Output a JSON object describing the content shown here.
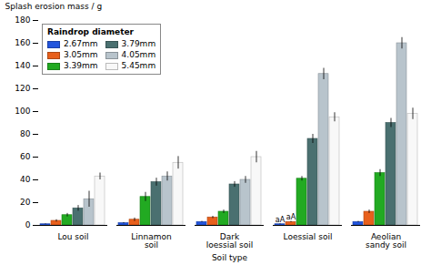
{
  "chart_data": {
    "type": "bar",
    "xlabel": "Soil type",
    "ylabel": "Splash erosion mass / g",
    "categories": [
      "Lou soil",
      "Linnamon soil",
      "Dark loessial soil",
      "Loessial soil",
      "Aeolian sandy soil"
    ],
    "series": [
      {
        "name": "2.67mm",
        "color": "#2255dd",
        "values": [
          1.0,
          2.0,
          3.0,
          1.0,
          3.0
        ],
        "errors": [
          0.3,
          0.5,
          0.5,
          0.3,
          0.5
        ]
      },
      {
        "name": "3.05mm",
        "color": "#e8601c",
        "values": [
          4.0,
          5.0,
          7.0,
          3.0,
          12.0
        ],
        "errors": [
          1.0,
          1.5,
          1.0,
          0.5,
          1.5
        ]
      },
      {
        "name": "3.39mm",
        "color": "#22aa22",
        "values": [
          9.0,
          25.0,
          12.0,
          41.0,
          46.0
        ],
        "errors": [
          1.5,
          4.0,
          1.5,
          2.0,
          3.0
        ]
      },
      {
        "name": "3.79mm",
        "color": "#4a7070",
        "values": [
          15.0,
          38.0,
          36.0,
          76.0,
          90.0
        ],
        "errors": [
          2.5,
          3.5,
          2.5,
          4.0,
          4.0
        ]
      },
      {
        "name": "4.05mm",
        "color": "#b8c4cc",
        "values": [
          23.0,
          43.0,
          40.0,
          133.0,
          160.0
        ],
        "errors": [
          7.0,
          4.0,
          3.0,
          5.0,
          5.0
        ]
      },
      {
        "name": "5.45mm",
        "color": "#f8f8f8",
        "values": [
          43.0,
          55.0,
          60.0,
          95.0,
          98.0
        ],
        "errors": [
          3.0,
          5.5,
          5.0,
          4.0,
          5.0
        ]
      }
    ],
    "annotations": [
      {
        "text": "aA",
        "category": "Loessial soil",
        "series": "2.67mm",
        "y": 1.5
      },
      {
        "text": "aA",
        "category": "Loessial soil",
        "series": "3.05mm",
        "y": 3.8
      }
    ],
    "ylim": [
      0,
      180
    ],
    "yticks": [
      0,
      20,
      40,
      60,
      80,
      100,
      120,
      140,
      160,
      180
    ],
    "grid": false,
    "legend": "upper left",
    "legend_title": "Raindrop diameter"
  }
}
